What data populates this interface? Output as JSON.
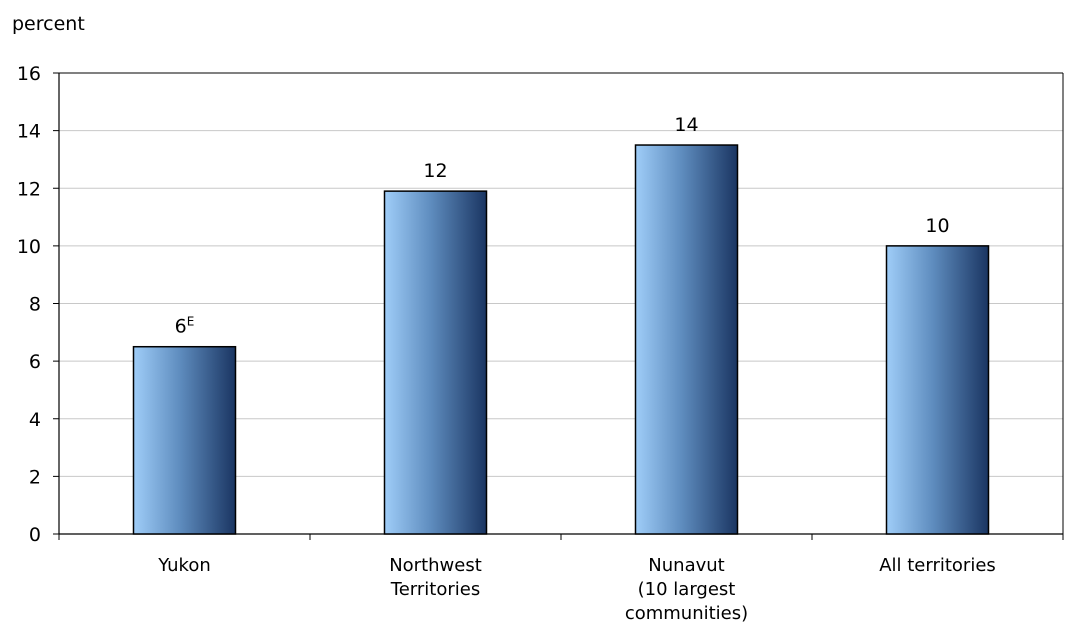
{
  "chart_data": {
    "type": "bar",
    "title": "",
    "xlabel": "",
    "ylabel": "percent",
    "ylim": [
      0,
      16
    ],
    "yticks": [
      0,
      2,
      4,
      6,
      8,
      10,
      12,
      14,
      16
    ],
    "grid": true,
    "legend": "none",
    "categories": [
      [
        "Yukon"
      ],
      [
        "Northwest",
        "Territories"
      ],
      [
        "Nunavut",
        "(10 largest",
        "communities)"
      ],
      [
        "All territories"
      ]
    ],
    "values": [
      6.5,
      11.9,
      13.5,
      10.0
    ],
    "data_labels": [
      {
        "text": "6",
        "superscript": "E"
      },
      {
        "text": "12",
        "superscript": ""
      },
      {
        "text": "14",
        "superscript": ""
      },
      {
        "text": "10",
        "superscript": ""
      }
    ],
    "colors": {
      "bar_light": "#9fcdf8",
      "bar_mid": "#5f8dbf",
      "bar_dark": "#1a3562",
      "bar_stroke": "#000000",
      "grid": "#c8c8c8",
      "axis": "#000000"
    }
  }
}
